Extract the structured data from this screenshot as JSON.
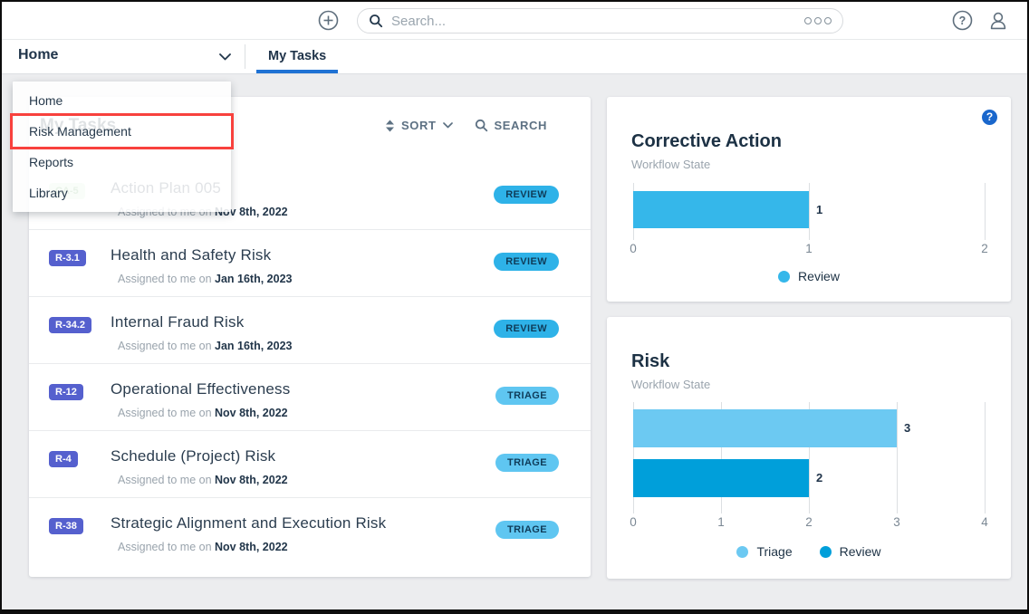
{
  "topbar": {
    "search_placeholder": "Search...",
    "icons": {
      "create": "plus-circle-icon",
      "search": "magnifier-icon",
      "search_options": "triple-dot-icon",
      "help": "question-circle-icon",
      "account": "person-icon"
    }
  },
  "nav": {
    "app_selector_label": "Home",
    "active_tab": "My Tasks",
    "tab_underline_color": "#1f72d4"
  },
  "nav_dropdown": {
    "items": [
      {
        "label": "Home",
        "highlighted": false
      },
      {
        "label": "Risk Management",
        "highlighted": true
      },
      {
        "label": "Reports",
        "highlighted": false
      },
      {
        "label": "Library",
        "highlighted": false
      }
    ],
    "highlight_box_color": "#f8413d"
  },
  "tasks_panel": {
    "title": "My Tasks",
    "toolbar": {
      "sort_label": "SORT",
      "search_label": "SEARCH"
    },
    "status_colors": {
      "REVIEW": "#2eb2e8",
      "TRIAGE": "#5fc6f1"
    },
    "ref_colors": {
      "indigo": {
        "bg": "#5560ce",
        "text": "#ffffff"
      },
      "green": {
        "bg": "#d4ecd4",
        "text": "#5ca460"
      }
    },
    "items": [
      {
        "ref": "CA-5",
        "ref_style": "green",
        "title": "Action Plan 005",
        "assigned_prefix": "Assigned to me on",
        "assigned_date": "Nov 8th, 2022",
        "status": "REVIEW"
      },
      {
        "ref": "R-3.1",
        "ref_style": "indigo",
        "title": "Health and Safety Risk",
        "assigned_prefix": "Assigned to me on",
        "assigned_date": "Jan 16th, 2023",
        "status": "REVIEW"
      },
      {
        "ref": "R-34.2",
        "ref_style": "indigo",
        "title": "Internal Fraud Risk",
        "assigned_prefix": "Assigned to me on",
        "assigned_date": "Jan 16th, 2023",
        "status": "REVIEW"
      },
      {
        "ref": "R-12",
        "ref_style": "indigo",
        "title": "Operational Effectiveness",
        "assigned_prefix": "Assigned to me on",
        "assigned_date": "Nov 8th, 2022",
        "status": "TRIAGE"
      },
      {
        "ref": "R-4",
        "ref_style": "indigo",
        "title": "Schedule (Project) Risk",
        "assigned_prefix": "Assigned to me on",
        "assigned_date": "Nov 8th, 2022",
        "status": "TRIAGE"
      },
      {
        "ref": "R-38",
        "ref_style": "indigo",
        "title": "Strategic Alignment and Execution Risk",
        "assigned_prefix": "Assigned to me on",
        "assigned_date": "Nov 8th, 2022",
        "status": "TRIAGE"
      }
    ]
  },
  "chart_data": [
    {
      "type": "bar",
      "orientation": "horizontal",
      "title": "Corrective Action",
      "subtitle": "Workflow State",
      "categories": [
        "Review"
      ],
      "values": [
        1
      ],
      "bar_colors": [
        "#35b7ea"
      ],
      "xlim": [
        0,
        2
      ],
      "xticks": [
        0,
        1,
        2
      ],
      "grid": true,
      "legend_position": "bottom",
      "legend": [
        {
          "label": "Review",
          "color": "#35b7ea"
        }
      ],
      "has_help_icon": true
    },
    {
      "type": "bar",
      "orientation": "horizontal",
      "title": "Risk",
      "subtitle": "Workflow State",
      "categories": [
        "Triage",
        "Review"
      ],
      "values": [
        3,
        2
      ],
      "bar_colors": [
        "#6cc9f2",
        "#009fda"
      ],
      "xlim": [
        0,
        4
      ],
      "xticks": [
        0,
        1,
        2,
        3,
        4
      ],
      "grid": true,
      "legend_position": "bottom",
      "legend": [
        {
          "label": "Triage",
          "color": "#6cc9f2"
        },
        {
          "label": "Review",
          "color": "#009fda"
        }
      ],
      "has_help_icon": false
    }
  ]
}
